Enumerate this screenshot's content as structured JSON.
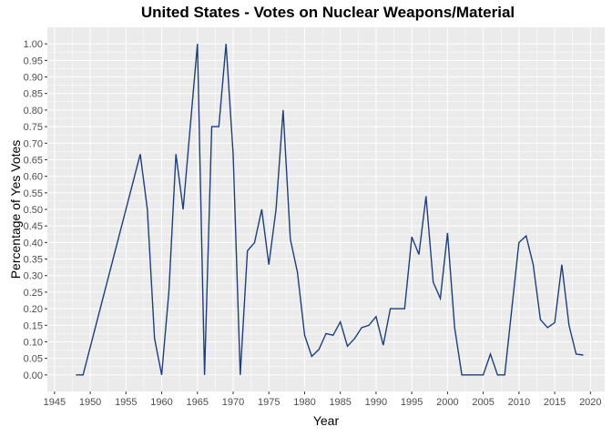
{
  "chart_data": {
    "type": "line",
    "title": "United States - Votes on Nuclear Weapons/Material",
    "xlabel": "Year",
    "ylabel": "Percentage of Yes Votes",
    "xlim": [
      1944,
      2022
    ],
    "ylim": [
      -0.05,
      1.05
    ],
    "x_ticks": [
      1945,
      1950,
      1955,
      1960,
      1965,
      1970,
      1975,
      1980,
      1985,
      1990,
      1995,
      2000,
      2005,
      2010,
      2015,
      2020
    ],
    "y_ticks": [
      0.0,
      0.05,
      0.1,
      0.15,
      0.2,
      0.25,
      0.3,
      0.35,
      0.4,
      0.45,
      0.5,
      0.55,
      0.6,
      0.65,
      0.7,
      0.75,
      0.8,
      0.85,
      0.9,
      0.95,
      1.0
    ],
    "grid": true,
    "colors": {
      "line": "#1f3f7a",
      "panel": "#ebebeb",
      "grid": "#ffffff"
    },
    "series": [
      {
        "x": [
          1948,
          1949,
          1957,
          1958,
          1959,
          1960,
          1961,
          1962,
          1963,
          1964,
          1965,
          1966,
          1967,
          1968,
          1969,
          1970,
          1971,
          1972,
          1973,
          1974,
          1975,
          1976,
          1977,
          1978,
          1979,
          1980,
          1981,
          1982,
          1983,
          1984,
          1985,
          1986,
          1987,
          1988,
          1989,
          1990,
          1991,
          1992,
          1993,
          1994,
          1995,
          1996,
          1997,
          1998,
          1999,
          2000,
          2001,
          2002,
          2003,
          2004,
          2005,
          2006,
          2007,
          2008,
          2009,
          2010,
          2011,
          2012,
          2013,
          2014,
          2015,
          2016,
          2017,
          2018,
          2019
        ],
        "y": [
          0.0,
          0.0,
          0.667,
          0.5,
          0.11,
          0.0,
          0.25,
          0.667,
          0.5,
          0.75,
          1.0,
          0.0,
          0.75,
          0.75,
          1.0,
          0.667,
          0.0,
          0.375,
          0.4,
          0.5,
          0.333,
          0.5,
          0.8,
          0.41,
          0.31,
          0.12,
          0.056,
          0.077,
          0.125,
          0.12,
          0.16,
          0.087,
          0.11,
          0.143,
          0.15,
          0.176,
          0.09,
          0.2,
          0.2,
          0.2,
          0.417,
          0.364,
          0.54,
          0.28,
          0.231,
          0.429,
          0.143,
          0.0,
          0.0,
          0.0,
          0.0,
          0.063,
          0.0,
          0.0,
          0.2,
          0.4,
          0.42,
          0.333,
          0.167,
          0.143,
          0.158,
          0.333,
          0.15,
          0.063,
          0.06
        ]
      }
    ]
  }
}
